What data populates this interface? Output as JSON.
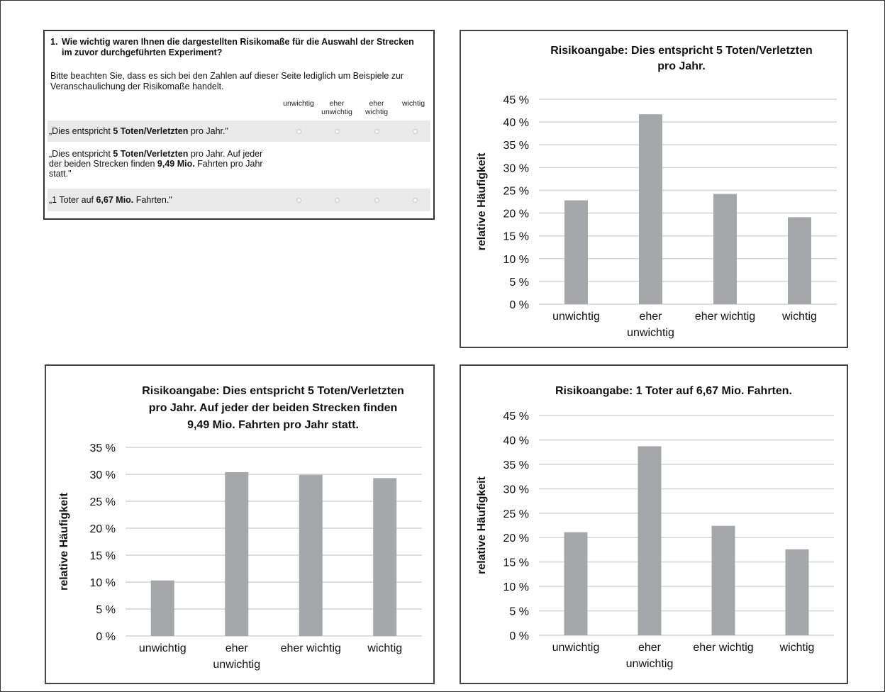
{
  "survey": {
    "number": "1.",
    "question": "Wie wichtig waren Ihnen die dargestellten Risikomaße für die Auswahl der Strecken im zuvor durchgeführten Experiment?",
    "note": "Bitte beachten Sie, dass es sich bei den Zahlen auf dieser Seite lediglich um Beispiele zur Veranschaulichung der Risikomaße handelt.",
    "columns": [
      {
        "l1": "",
        "l2": "unwichtig"
      },
      {
        "l1": "eher",
        "l2": "unwichtig"
      },
      {
        "l1": "eher",
        "l2": "wichtig"
      },
      {
        "l1": "",
        "l2": "wichtig"
      }
    ],
    "rows": [
      {
        "pre": "„Dies entspricht ",
        "b1": "5 Toten/Verletzten",
        "mid": " pro Jahr.\"",
        "b2": "",
        "post": "",
        "radios": true
      },
      {
        "pre": "„Dies entspricht ",
        "b1": "5 Toten/Verletzten",
        "mid": " pro Jahr. Auf jeder der beiden Strecken finden ",
        "b2": "9,49 Mio.",
        "post": " Fahrten pro Jahr statt.\"",
        "radios": false
      },
      {
        "pre": "„1 Toter auf ",
        "b1": "6,67 Mio.",
        "mid": " Fahrten.\"",
        "b2": "",
        "post": "",
        "radios": true
      }
    ]
  },
  "chart_data": [
    {
      "type": "bar",
      "title": "Risikoangabe: Dies entspricht 5 Toten/Verletzten pro Jahr.",
      "title_lines": [
        "Risikoangabe: Dies entspricht 5 Toten/Verletzten",
        "pro Jahr."
      ],
      "ylabel": "relative Häufigkeit",
      "xlabel": "",
      "categories": [
        "unwichtig",
        "eher unwichtig",
        "eher wichtig",
        "wichtig"
      ],
      "category_lines": [
        [
          "unwichtig"
        ],
        [
          "eher",
          "unwichtig"
        ],
        [
          "eher wichtig"
        ],
        [
          "wichtig"
        ]
      ],
      "values": [
        22.8,
        41.7,
        24.2,
        19.1
      ],
      "ylim": [
        0,
        45
      ],
      "yticks": [
        "0 %",
        "5 %",
        "10 %",
        "15 %",
        "20 %",
        "25 %",
        "30 %",
        "35 %",
        "40 %",
        "45 %"
      ],
      "grid": true,
      "bar_color": "#a6a7aa"
    },
    {
      "type": "bar",
      "title": "Risikoangabe: Dies entspricht 5 Toten/Verletzten pro Jahr. Auf jeder der beiden Strecken finden 9,49 Mio. Fahrten pro Jahr statt.",
      "title_lines": [
        "Risikoangabe: Dies entspricht 5 Toten/Verletzten",
        "pro Jahr. Auf jeder der beiden Strecken finden",
        "9,49 Mio. Fahrten pro Jahr statt."
      ],
      "ylabel": "relative Häufigkeit",
      "xlabel": "",
      "categories": [
        "unwichtig",
        "eher unwichtig",
        "eher wichtig",
        "wichtig"
      ],
      "category_lines": [
        [
          "unwichtig"
        ],
        [
          "eher",
          "unwichtig"
        ],
        [
          "eher wichtig"
        ],
        [
          "wichtig"
        ]
      ],
      "values": [
        10.3,
        30.4,
        29.9,
        29.3
      ],
      "ylim": [
        0,
        35
      ],
      "yticks": [
        "0 %",
        "5 %",
        "10 %",
        "15 %",
        "20 %",
        "25 %",
        "30 %",
        "35 %"
      ],
      "grid": true,
      "bar_color": "#a6a7aa"
    },
    {
      "type": "bar",
      "title": "Risikoangabe: 1 Toter auf 6,67 Mio. Fahrten.",
      "title_lines": [
        "Risikoangabe: 1 Toter auf 6,67 Mio. Fahrten."
      ],
      "ylabel": "relative Häufigkeit",
      "xlabel": "",
      "categories": [
        "unwichtig",
        "eher unwichtig",
        "eher wichtig",
        "wichtig"
      ],
      "category_lines": [
        [
          "unwichtig"
        ],
        [
          "eher",
          "unwichtig"
        ],
        [
          "eher wichtig"
        ],
        [
          "wichtig"
        ]
      ],
      "values": [
        21.1,
        38.7,
        22.4,
        17.6
      ],
      "ylim": [
        0,
        45
      ],
      "yticks": [
        "0 %",
        "5 %",
        "10 %",
        "15 %",
        "20 %",
        "25 %",
        "30 %",
        "35 %",
        "40 %",
        "45 %"
      ],
      "grid": true,
      "bar_color": "#a6a7aa"
    }
  ]
}
